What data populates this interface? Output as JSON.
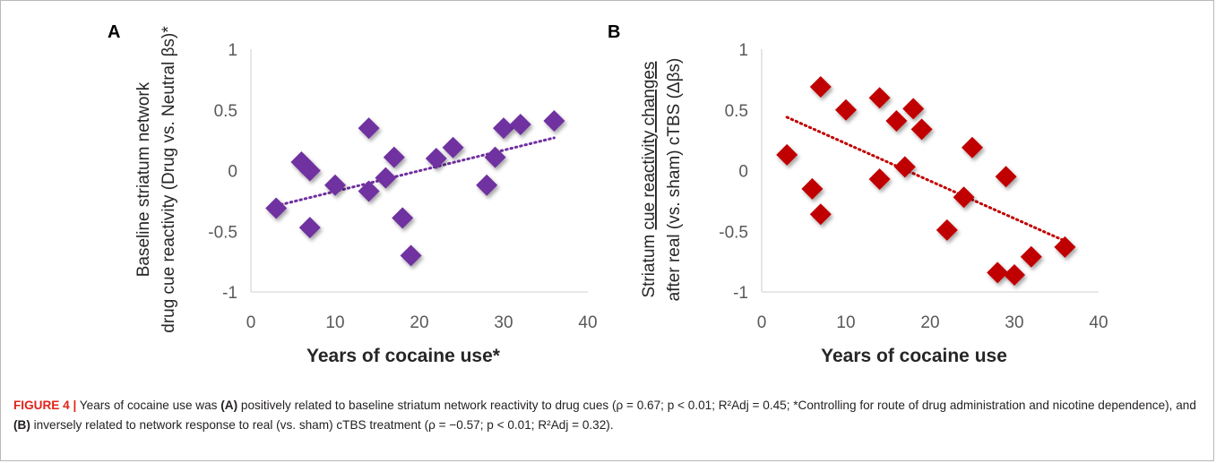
{
  "chart_data": [
    {
      "type": "scatter",
      "panel_label": "A",
      "xlabel": "Years of cocaine use*",
      "ylabel_lines": [
        "Baseline striatum network",
        "drug cue reactivity (Drug vs. Neutral βs)*"
      ],
      "xlim": [
        0,
        40
      ],
      "ylim": [
        -1,
        1
      ],
      "xticks": [
        "0",
        "10",
        "20",
        "30",
        "40"
      ],
      "yticks": [
        "1",
        "0.5",
        "0",
        "-0.5",
        "-1"
      ],
      "marker_color": "#7030a0",
      "trendline": {
        "style": "dotted",
        "x": [
          3,
          36
        ],
        "y": [
          -0.29,
          0.27
        ]
      },
      "points": [
        {
          "x": 3,
          "y": -0.31
        },
        {
          "x": 6,
          "y": 0.07
        },
        {
          "x": 7,
          "y": 0.0
        },
        {
          "x": 7,
          "y": -0.47
        },
        {
          "x": 10,
          "y": -0.12
        },
        {
          "x": 14,
          "y": 0.35
        },
        {
          "x": 14,
          "y": -0.17
        },
        {
          "x": 16,
          "y": -0.06
        },
        {
          "x": 17,
          "y": 0.11
        },
        {
          "x": 18,
          "y": -0.39
        },
        {
          "x": 19,
          "y": -0.7
        },
        {
          "x": 22,
          "y": 0.1
        },
        {
          "x": 24,
          "y": 0.19
        },
        {
          "x": 28,
          "y": -0.12
        },
        {
          "x": 29,
          "y": 0.11
        },
        {
          "x": 30,
          "y": 0.35
        },
        {
          "x": 32,
          "y": 0.38
        },
        {
          "x": 36,
          "y": 0.41
        }
      ]
    },
    {
      "type": "scatter",
      "panel_label": "B",
      "xlabel": "Years of cocaine use",
      "ylabel_lines": [
        "Striatum cue reactivity changes",
        "after real (vs. sham) cTBS (Δβs)"
      ],
      "ylabel_underlined_part": "cue reactivity changes",
      "xlim": [
        0,
        40
      ],
      "ylim": [
        -1,
        1
      ],
      "xticks": [
        "0",
        "10",
        "20",
        "30",
        "40"
      ],
      "yticks": [
        "1",
        "0.5",
        "0",
        "-0.5",
        "-1"
      ],
      "marker_color": "#c00000",
      "trendline": {
        "style": "dotted",
        "x": [
          3,
          36
        ],
        "y": [
          0.44,
          -0.58
        ]
      },
      "points": [
        {
          "x": 3,
          "y": 0.13
        },
        {
          "x": 6,
          "y": -0.15
        },
        {
          "x": 7,
          "y": 0.69
        },
        {
          "x": 7,
          "y": -0.36
        },
        {
          "x": 10,
          "y": 0.5
        },
        {
          "x": 14,
          "y": 0.6
        },
        {
          "x": 14,
          "y": -0.07
        },
        {
          "x": 16,
          "y": 0.41
        },
        {
          "x": 17,
          "y": 0.03
        },
        {
          "x": 18,
          "y": 0.51
        },
        {
          "x": 19,
          "y": 0.34
        },
        {
          "x": 22,
          "y": -0.49
        },
        {
          "x": 24,
          "y": -0.22
        },
        {
          "x": 25,
          "y": 0.19
        },
        {
          "x": 28,
          "y": -0.84
        },
        {
          "x": 29,
          "y": -0.05
        },
        {
          "x": 30,
          "y": -0.86
        },
        {
          "x": 32,
          "y": -0.71
        },
        {
          "x": 36,
          "y": -0.63
        }
      ]
    }
  ],
  "caption": {
    "figure_label": "FIGURE 4 |",
    "text_1": " Years of cocaine use was ",
    "panel_a": "(A)",
    "text_2": " positively related to baseline striatum network reactivity to drug cues (ρ = 0.67; p < 0.01; R²Adj = 0.45; *Controlling for route of drug administration and nicotine dependence), and ",
    "panel_b": "(B)",
    "text_3": " inversely related to network response to real (vs. sham) cTBS treatment (ρ = −0.57; p < 0.01; R²Adj = 0.32)."
  }
}
